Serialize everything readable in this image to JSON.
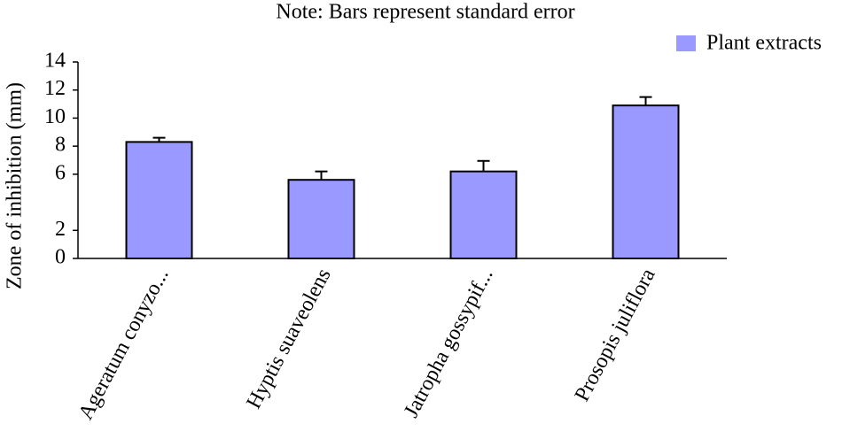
{
  "chart_data": {
    "type": "bar",
    "title": "Note: Bars represent standard error",
    "y_label": "Zone of inhibition (mm)",
    "categories": [
      "Ageratum conyzo...",
      "Hyptis suaveolens",
      "Jatropha gossypif...",
      "Prosopis juliflora"
    ],
    "series": [
      {
        "name": "Plant extracts",
        "color": "#9999ff",
        "values": [
          8.3,
          5.6,
          6.2,
          10.9
        ],
        "errors": [
          0.3,
          0.6,
          0.75,
          0.6
        ]
      }
    ],
    "ylim": [
      0,
      14
    ],
    "yticks": [
      0,
      2,
      6,
      8,
      10,
      12,
      14
    ],
    "grid": false,
    "legend": "top-right"
  }
}
